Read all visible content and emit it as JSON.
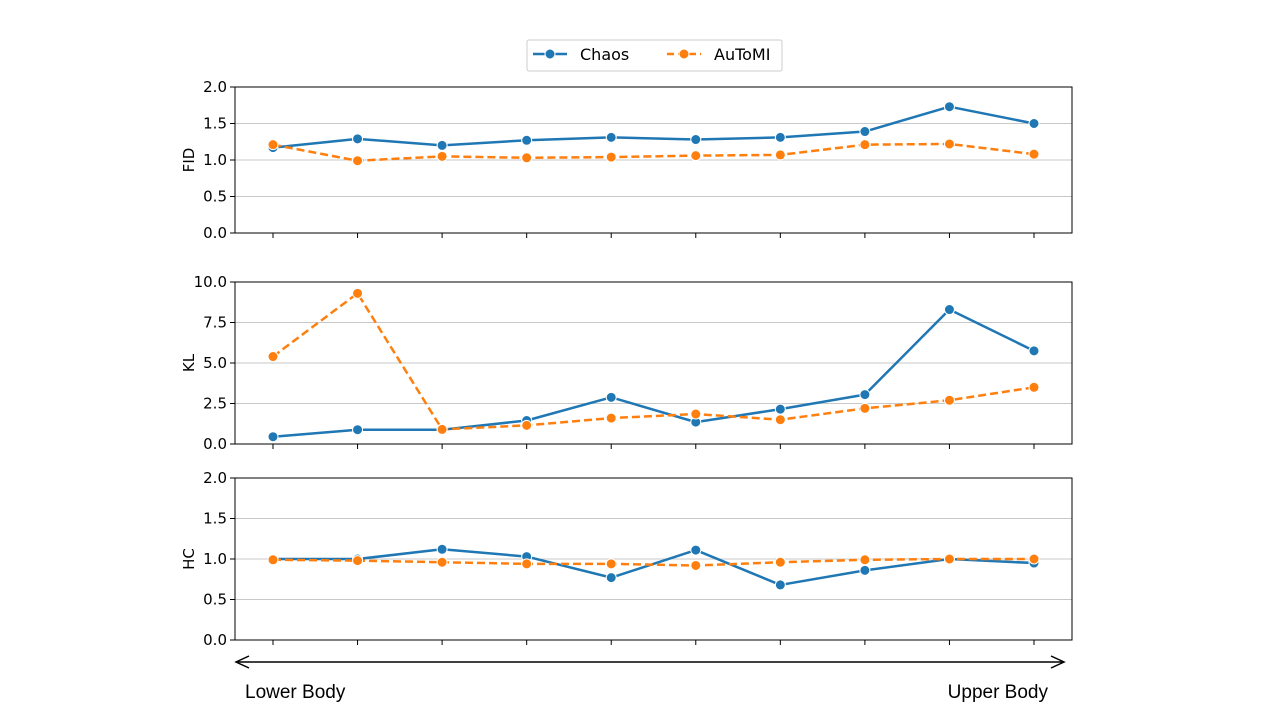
{
  "legend": {
    "placement": "top-center",
    "entries": [
      {
        "name": "Chaos",
        "color": "#1f77b4",
        "style": "solid"
      },
      {
        "name": "AuToMI",
        "color": "#ff7f0e",
        "style": "dashed"
      }
    ]
  },
  "axis_annotation": {
    "left": "Lower Body",
    "right": "Upper Body",
    "arrow": "double-headed"
  },
  "chart_data": [
    {
      "type": "line",
      "ylabel": "FID",
      "ylim": [
        0,
        2.0
      ],
      "yticks": [
        "0.0",
        "0.5",
        "1.0",
        "1.5",
        "2.0"
      ],
      "grid": "horizontal",
      "x": [
        1,
        2,
        3,
        4,
        5,
        6,
        7,
        8,
        9,
        10
      ],
      "series": [
        {
          "name": "Chaos",
          "color": "#1f77b4",
          "values": [
            1.17,
            1.29,
            1.2,
            1.27,
            1.31,
            1.28,
            1.31,
            1.39,
            1.73,
            1.5
          ]
        },
        {
          "name": "AuToMI",
          "color": "#ff7f0e",
          "values": [
            1.21,
            0.99,
            1.05,
            1.03,
            1.04,
            1.06,
            1.07,
            1.21,
            1.22,
            1.08
          ]
        }
      ]
    },
    {
      "type": "line",
      "ylabel": "KL",
      "ylim": [
        0,
        10.0
      ],
      "yticks": [
        "0.0",
        "2.5",
        "5.0",
        "7.5",
        "10.0"
      ],
      "grid": "horizontal",
      "x": [
        1,
        2,
        3,
        4,
        5,
        6,
        7,
        8,
        9,
        10
      ],
      "series": [
        {
          "name": "Chaos",
          "color": "#1f77b4",
          "values": [
            0.45,
            0.88,
            0.88,
            1.45,
            2.88,
            1.35,
            2.15,
            3.05,
            8.3,
            5.75
          ]
        },
        {
          "name": "AuToMI",
          "color": "#ff7f0e",
          "values": [
            5.4,
            9.3,
            0.9,
            1.15,
            1.6,
            1.85,
            1.5,
            2.2,
            2.7,
            3.5
          ]
        }
      ]
    },
    {
      "type": "line",
      "ylabel": "HC",
      "ylim": [
        0,
        2.0
      ],
      "yticks": [
        "0.0",
        "0.5",
        "1.0",
        "1.5",
        "2.0"
      ],
      "grid": "horizontal",
      "x": [
        1,
        2,
        3,
        4,
        5,
        6,
        7,
        8,
        9,
        10
      ],
      "series": [
        {
          "name": "Chaos",
          "color": "#1f77b4",
          "values": [
            1.0,
            1.0,
            1.12,
            1.03,
            0.77,
            1.11,
            0.68,
            0.86,
            1.0,
            0.95
          ]
        },
        {
          "name": "AuToMI",
          "color": "#ff7f0e",
          "values": [
            0.99,
            0.98,
            0.96,
            0.94,
            0.94,
            0.92,
            0.96,
            0.99,
            1.0,
            1.0
          ]
        }
      ]
    }
  ]
}
